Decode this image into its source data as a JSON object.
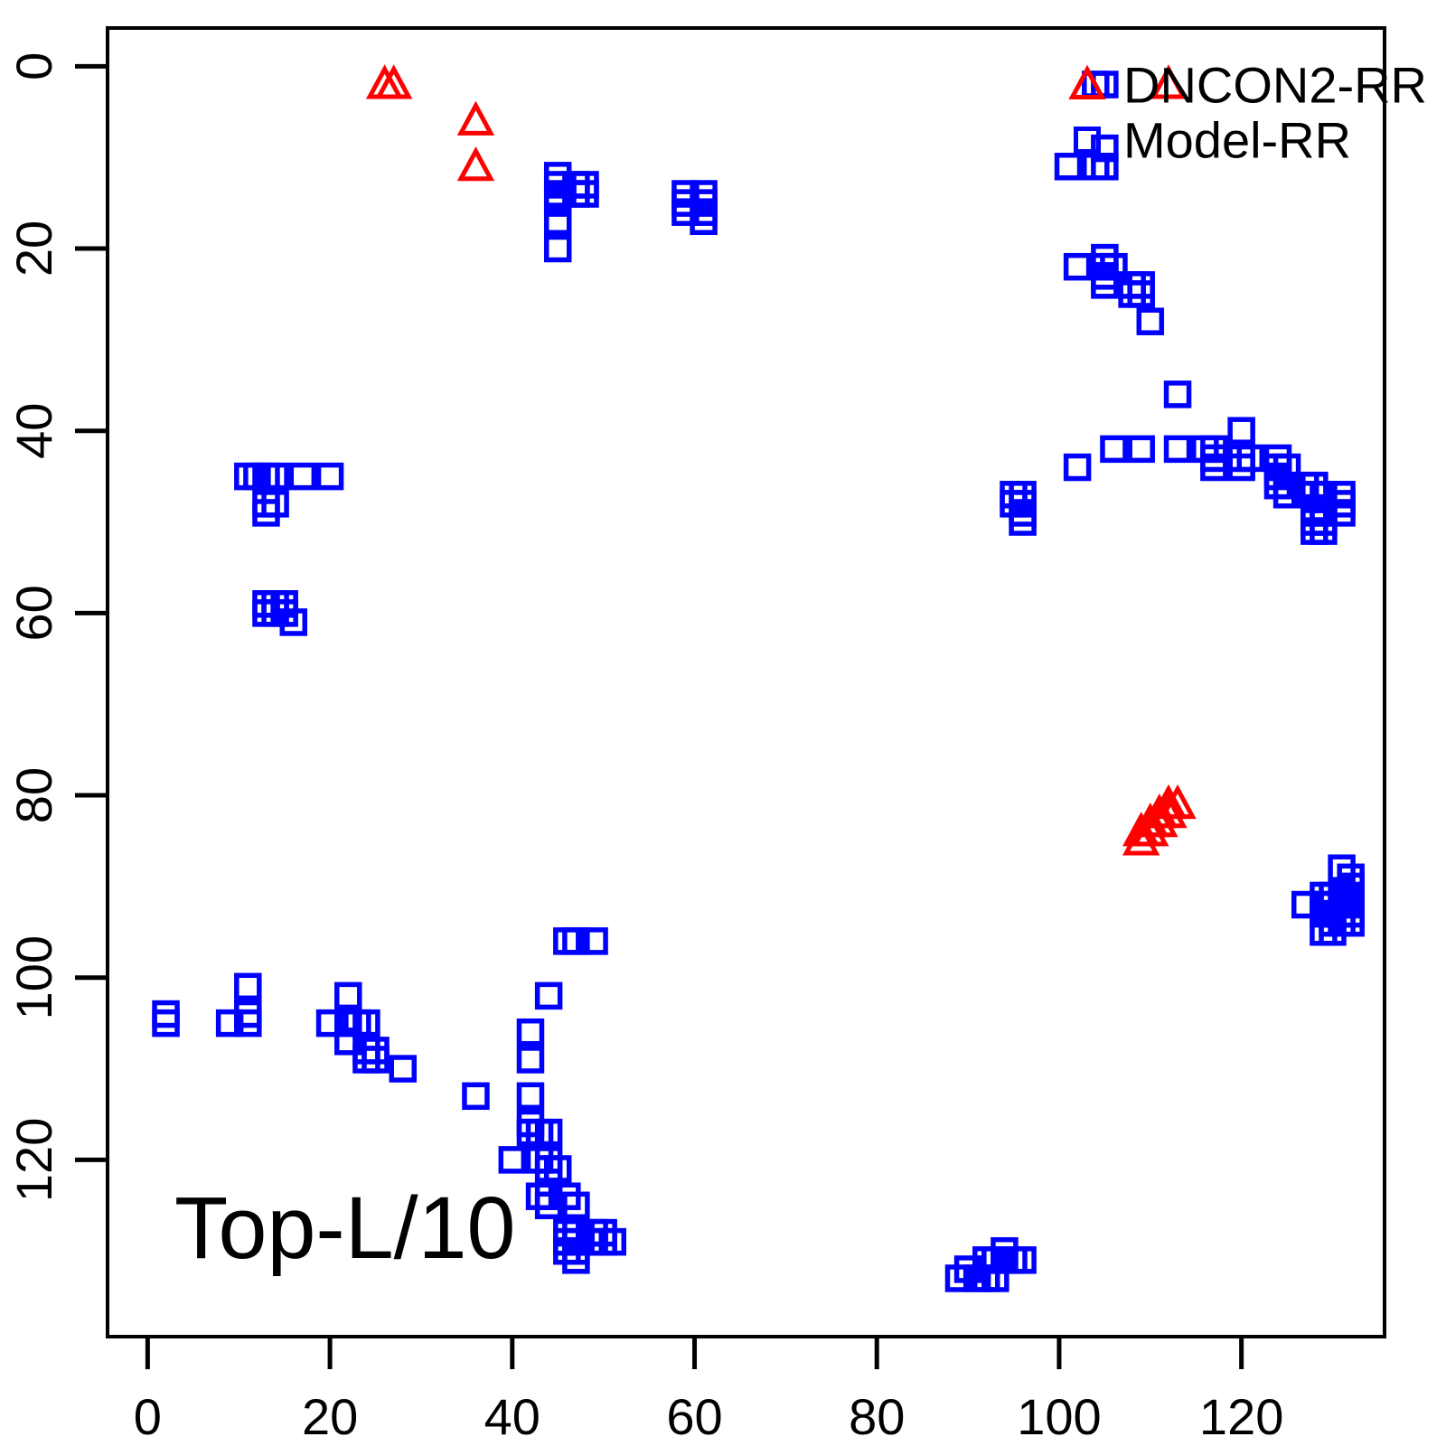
{
  "figure": {
    "background": "#ffffff",
    "frame_color": "#000000"
  },
  "chart_data": {
    "type": "scatter",
    "title": "",
    "xlabel": "",
    "ylabel": "",
    "annotation": "Top-L/10",
    "grid": false,
    "y_inverted": true,
    "xlim": [
      -4.4,
      135.7
    ],
    "ylim": [
      -4.2,
      139.4
    ],
    "x_ticks": [
      0,
      20,
      40,
      60,
      80,
      100,
      120
    ],
    "y_ticks": [
      0,
      20,
      40,
      60,
      80,
      100,
      120
    ],
    "legend_position": "top-right",
    "series": [
      {
        "name": "DNCON2-RR",
        "marker": "triangle",
        "color": "#FF0000",
        "points": [
          [
            26,
            2
          ],
          [
            27,
            2
          ],
          [
            36,
            6
          ],
          [
            36,
            11
          ],
          [
            112,
            2
          ],
          [
            109,
            84
          ],
          [
            109,
            85
          ],
          [
            110,
            84
          ],
          [
            110,
            83
          ],
          [
            111,
            83
          ],
          [
            111,
            82
          ],
          [
            112,
            82
          ],
          [
            112,
            81
          ],
          [
            113,
            81
          ]
        ]
      },
      {
        "name": "Model-RR",
        "marker": "square",
        "color": "#0000FF",
        "points": [
          [
            45,
            12
          ],
          [
            45,
            13
          ],
          [
            45,
            14
          ],
          [
            45,
            15
          ],
          [
            45,
            17
          ],
          [
            45,
            20
          ],
          [
            47,
            13
          ],
          [
            48,
            13
          ],
          [
            47,
            14
          ],
          [
            48,
            14
          ],
          [
            59,
            14
          ],
          [
            59,
            15
          ],
          [
            59,
            16
          ],
          [
            61,
            14
          ],
          [
            61,
            15
          ],
          [
            61,
            16
          ],
          [
            61,
            17
          ],
          [
            104,
            2
          ],
          [
            105,
            2
          ],
          [
            105,
            9
          ],
          [
            101,
            11
          ],
          [
            104,
            11
          ],
          [
            105,
            11
          ],
          [
            102,
            22
          ],
          [
            105,
            21
          ],
          [
            105,
            22
          ],
          [
            105,
            23
          ],
          [
            105,
            24
          ],
          [
            106,
            22
          ],
          [
            108,
            24
          ],
          [
            109,
            24
          ],
          [
            108,
            25
          ],
          [
            109,
            25
          ],
          [
            110,
            28
          ],
          [
            113,
            36
          ],
          [
            120,
            40
          ],
          [
            102,
            44
          ],
          [
            106,
            42
          ],
          [
            109,
            42
          ],
          [
            113,
            42
          ],
          [
            116,
            42
          ],
          [
            117,
            42
          ],
          [
            117,
            43
          ],
          [
            117,
            44
          ],
          [
            120,
            43
          ],
          [
            121,
            43
          ],
          [
            120,
            44
          ],
          [
            124,
            43
          ],
          [
            124,
            44
          ],
          [
            125,
            44
          ],
          [
            124,
            45
          ],
          [
            124,
            46
          ],
          [
            125,
            46
          ],
          [
            125,
            47
          ],
          [
            127,
            46
          ],
          [
            128,
            46
          ],
          [
            127,
            47
          ],
          [
            129,
            47
          ],
          [
            131,
            47
          ],
          [
            131,
            48
          ],
          [
            131,
            49
          ],
          [
            128,
            49
          ],
          [
            129,
            49
          ],
          [
            128,
            50
          ],
          [
            129,
            50
          ],
          [
            128,
            51
          ],
          [
            129,
            51
          ],
          [
            95,
            47
          ],
          [
            96,
            47
          ],
          [
            95,
            48
          ],
          [
            96,
            48
          ],
          [
            96,
            49
          ],
          [
            96,
            50
          ],
          [
            11,
            45
          ],
          [
            12,
            45
          ],
          [
            13,
            45
          ],
          [
            14,
            45
          ],
          [
            17,
            45
          ],
          [
            20,
            45
          ],
          [
            13,
            48
          ],
          [
            14,
            48
          ],
          [
            13,
            49
          ],
          [
            13,
            59
          ],
          [
            14,
            59
          ],
          [
            15,
            59
          ],
          [
            13,
            60
          ],
          [
            14,
            60
          ],
          [
            15,
            60
          ],
          [
            16,
            61
          ],
          [
            2,
            104
          ],
          [
            2,
            105
          ],
          [
            11,
            101
          ],
          [
            9,
            105
          ],
          [
            11,
            104
          ],
          [
            11,
            105
          ],
          [
            22,
            102
          ],
          [
            20,
            105
          ],
          [
            22,
            105
          ],
          [
            23,
            105
          ],
          [
            24,
            105
          ],
          [
            22,
            107
          ],
          [
            24,
            108
          ],
          [
            25,
            108
          ],
          [
            24,
            109
          ],
          [
            25,
            109
          ],
          [
            28,
            110
          ],
          [
            44,
            102
          ],
          [
            42,
            106
          ],
          [
            42,
            109
          ],
          [
            36,
            113
          ],
          [
            42,
            113
          ],
          [
            42,
            116
          ],
          [
            42,
            117
          ],
          [
            43,
            117
          ],
          [
            44,
            117
          ],
          [
            40,
            120
          ],
          [
            43,
            120
          ],
          [
            44,
            120
          ],
          [
            44,
            121
          ],
          [
            45,
            121
          ],
          [
            43,
            124
          ],
          [
            44,
            124
          ],
          [
            44,
            125
          ],
          [
            46,
            124
          ],
          [
            47,
            125
          ],
          [
            46,
            128
          ],
          [
            47,
            128
          ],
          [
            49,
            128
          ],
          [
            50,
            128
          ],
          [
            46,
            129
          ],
          [
            47,
            129
          ],
          [
            49,
            129
          ],
          [
            50,
            129
          ],
          [
            51,
            129
          ],
          [
            46,
            130
          ],
          [
            47,
            130
          ],
          [
            47,
            131
          ],
          [
            46,
            96
          ],
          [
            47,
            96
          ],
          [
            49,
            96
          ],
          [
            94,
            130
          ],
          [
            92,
            131
          ],
          [
            93,
            131
          ],
          [
            94,
            131
          ],
          [
            95,
            131
          ],
          [
            96,
            131
          ],
          [
            90,
            132
          ],
          [
            89,
            133
          ],
          [
            91,
            133
          ],
          [
            92,
            133
          ],
          [
            93,
            133
          ],
          [
            131,
            88
          ],
          [
            132,
            89
          ],
          [
            132,
            90
          ],
          [
            127,
            92
          ],
          [
            129,
            91
          ],
          [
            130,
            91
          ],
          [
            131,
            91
          ],
          [
            132,
            91
          ],
          [
            129,
            92
          ],
          [
            130,
            92
          ],
          [
            131,
            92
          ],
          [
            132,
            92
          ],
          [
            129,
            93
          ],
          [
            130,
            93
          ],
          [
            131,
            93
          ],
          [
            132,
            93
          ],
          [
            130,
            94
          ],
          [
            131,
            94
          ],
          [
            132,
            94
          ],
          [
            129,
            95
          ],
          [
            130,
            95
          ]
        ]
      }
    ]
  }
}
